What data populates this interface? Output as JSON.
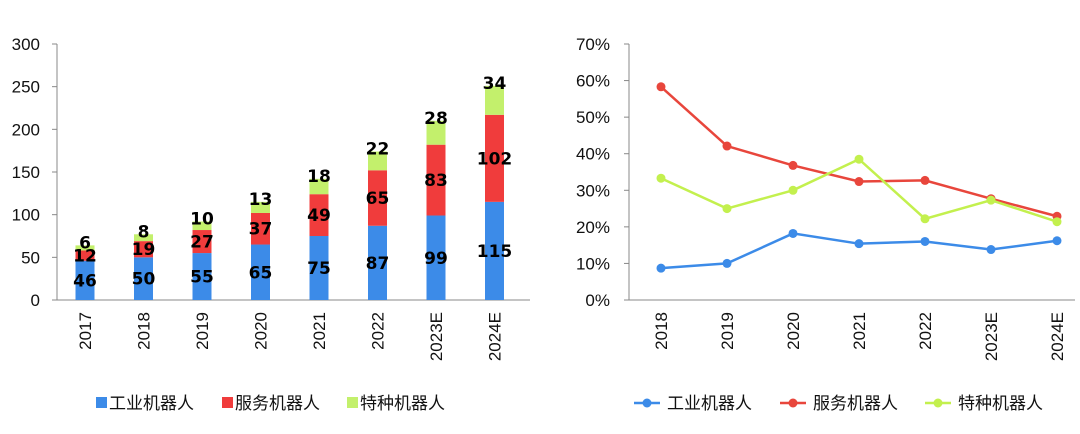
{
  "chart_data": [
    {
      "type": "bar",
      "stacked": true,
      "categories": [
        "2017",
        "2018",
        "2019",
        "2020",
        "2021",
        "2022",
        "2023E",
        "2024E"
      ],
      "series": [
        {
          "name": "工业机器人",
          "color": "#3c8be8",
          "values": [
            46,
            50,
            55,
            65,
            75,
            87,
            99,
            115
          ]
        },
        {
          "name": "服务机器人",
          "color": "#f03c3c",
          "values": [
            12,
            19,
            27,
            37,
            49,
            65,
            83,
            102
          ]
        },
        {
          "name": "特种机器人",
          "color": "#c3f06c",
          "values": [
            6,
            8,
            10,
            13,
            18,
            22,
            28,
            34
          ]
        }
      ],
      "ylim": [
        0,
        300
      ],
      "yticks": [
        0,
        50,
        100,
        150,
        200,
        250,
        300
      ],
      "grid": false,
      "legend": "bottom"
    },
    {
      "type": "line",
      "categories": [
        "2018",
        "2019",
        "2020",
        "2021",
        "2022",
        "2023E",
        "2024E"
      ],
      "series": [
        {
          "name": "工业机器人",
          "color": "#3c8be8",
          "values": [
            8.7,
            10.0,
            18.2,
            15.4,
            16.0,
            13.8,
            16.2
          ]
        },
        {
          "name": "服务机器人",
          "color": "#e8463c",
          "values": [
            58.3,
            42.1,
            36.8,
            32.4,
            32.7,
            27.7,
            22.9
          ]
        },
        {
          "name": "特种机器人",
          "color": "#c3f04e",
          "values": [
            33.3,
            25.0,
            30.0,
            38.5,
            22.2,
            27.3,
            21.4
          ]
        }
      ],
      "ylim": [
        0,
        70
      ],
      "yticks": [
        "0%",
        "10%",
        "20%",
        "30%",
        "40%",
        "50%",
        "60%",
        "70%"
      ],
      "grid": false,
      "legend": "bottom"
    }
  ]
}
